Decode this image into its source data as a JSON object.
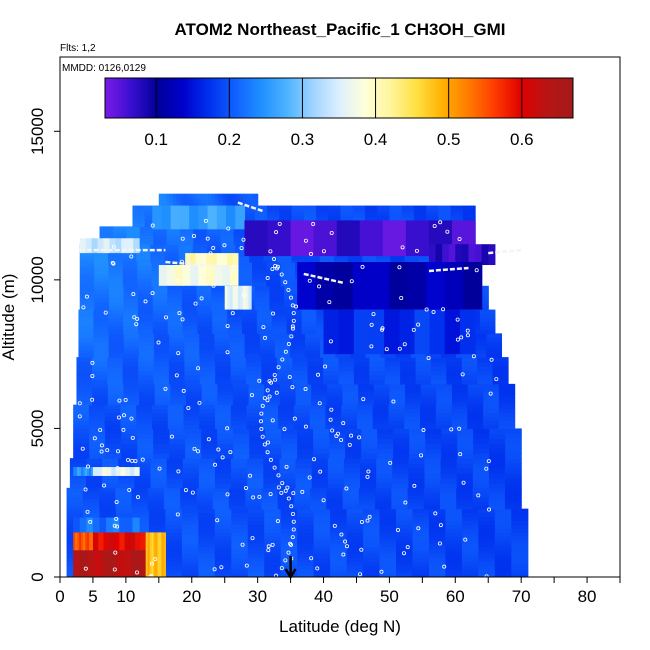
{
  "chart_data": {
    "type": "heatmap",
    "title": "ATOM2 Northeast_Pacific_1 CH3OH_GMI",
    "subtitle_flights": "Flts: 1,2",
    "subtitle_dates": "MMDD: 0126,0129",
    "xlabel": "Latitude (deg N)",
    "ylabel": "Altitude (m)",
    "xlim": [
      0,
      85
    ],
    "ylim": [
      0,
      17500
    ],
    "x_ticks": [
      0,
      5,
      10,
      20,
      30,
      40,
      50,
      60,
      70,
      80
    ],
    "x_tick_labels": [
      "0",
      "5",
      "10",
      "20",
      "30",
      "40",
      "50",
      "60",
      "70",
      "80"
    ],
    "y_ticks": [
      0,
      5000,
      10000,
      15000
    ],
    "y_tick_labels": [
      "0",
      "5000",
      "10000",
      "15000"
    ],
    "colorbar": {
      "range": [
        0.03,
        0.67
      ],
      "ticks": [
        0.1,
        0.2,
        0.3,
        0.4,
        0.5,
        0.6
      ],
      "tick_labels": [
        "0.1",
        "0.2",
        "0.3",
        "0.4",
        "0.5",
        "0.6"
      ],
      "colors": [
        "#7a1be8",
        "#3a0fd0",
        "#000099",
        "#0000cc",
        "#0030ee",
        "#1060ff",
        "#1f8fff",
        "#4db3ff",
        "#9fd4ff",
        "#dcefff",
        "#ffffd9",
        "#fff59a",
        "#ffe040",
        "#ffb000",
        "#ff7a00",
        "#ff3a00",
        "#e00000",
        "#b81414",
        "#a31a1a"
      ]
    },
    "marker": {
      "type": "arrow",
      "x": 35
    },
    "regions": [
      {
        "lat": [
          2,
          13
        ],
        "alt": [
          0,
          900
        ],
        "value": 0.64
      },
      {
        "lat": [
          2,
          5
        ],
        "alt": [
          900,
          1500
        ],
        "value": 0.55
      },
      {
        "lat": [
          5,
          13
        ],
        "alt": [
          900,
          1500
        ],
        "value": 0.6
      },
      {
        "lat": [
          13,
          16
        ],
        "alt": [
          0,
          1500
        ],
        "value": 0.48
      },
      {
        "lat": [
          2,
          12
        ],
        "alt": [
          1500,
          2000
        ],
        "value": 0.22
      },
      {
        "lat": [
          2,
          5
        ],
        "alt": [
          3400,
          3700
        ],
        "value": 0.25
      },
      {
        "lat": [
          5,
          12
        ],
        "alt": [
          3400,
          3700
        ],
        "value": 0.36
      },
      {
        "lat": [
          15,
          27
        ],
        "alt": [
          9800,
          10500
        ],
        "value": 0.38
      },
      {
        "lat": [
          19,
          27
        ],
        "alt": [
          10500,
          10900
        ],
        "value": 0.4
      },
      {
        "lat": [
          25,
          29
        ],
        "alt": [
          9000,
          9800
        ],
        "value": 0.36
      },
      {
        "lat": [
          3,
          12
        ],
        "alt": [
          10900,
          11400
        ],
        "value": 0.34
      },
      {
        "lat": [
          14,
          28
        ],
        "alt": [
          11700,
          12500
        ],
        "value": 0.26
      },
      {
        "lat": [
          28,
          63
        ],
        "alt": [
          10800,
          12000
        ],
        "value": 0.06
      },
      {
        "lat": [
          56,
          66
        ],
        "alt": [
          10500,
          11200
        ],
        "value": 0.07
      },
      {
        "lat": [
          36,
          64
        ],
        "alt": [
          9000,
          10600
        ],
        "value": 0.12
      },
      {
        "lat": [
          40,
          63
        ],
        "alt": [
          7500,
          9000
        ],
        "value": 0.17
      }
    ],
    "annotation_lines": [
      {
        "x": [
          3,
          16
        ],
        "alt": [
          11000,
          11000
        ]
      },
      {
        "x": [
          16,
          27
        ],
        "alt": [
          10600,
          10400
        ]
      },
      {
        "x": [
          27,
          31
        ],
        "alt": [
          12600,
          12300
        ]
      },
      {
        "x": [
          37,
          43
        ],
        "alt": [
          10200,
          9900
        ]
      },
      {
        "x": [
          65,
          70
        ],
        "alt": [
          10900,
          11000
        ]
      },
      {
        "x": [
          56,
          62
        ],
        "alt": [
          10300,
          10400
        ]
      }
    ]
  },
  "colors": {
    "background_fill": "#3e6fe0",
    "frame": "#000000"
  }
}
